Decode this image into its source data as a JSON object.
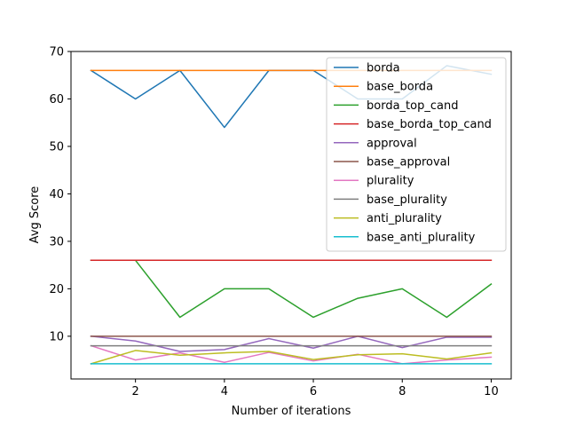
{
  "chart_data": {
    "type": "line",
    "title": "",
    "xlabel": "Number of iterations",
    "ylabel": "Avg Score",
    "xlim": [
      0.55,
      10.45
    ],
    "ylim": [
      1,
      70
    ],
    "xticks": [
      2,
      4,
      6,
      8,
      10
    ],
    "yticks": [
      10,
      20,
      30,
      40,
      50,
      60,
      70
    ],
    "grid": false,
    "legend_position": "upper-right",
    "x": [
      1,
      2,
      3,
      4,
      5,
      6,
      7,
      8,
      9,
      10
    ],
    "series": [
      {
        "name": "borda",
        "color": "#1f77b4",
        "values": [
          66,
          60,
          66,
          54,
          66,
          66,
          60,
          60,
          67,
          65.2
        ]
      },
      {
        "name": "base_borda",
        "color": "#ff7f0e",
        "values": [
          66,
          66,
          66,
          66,
          66,
          66,
          66,
          66,
          66,
          66
        ]
      },
      {
        "name": "borda_top_cand",
        "color": "#2ca02c",
        "values": [
          26,
          26,
          14,
          20,
          20,
          14,
          18,
          20,
          14,
          21
        ]
      },
      {
        "name": "base_borda_top_cand",
        "color": "#d62728",
        "values": [
          26,
          26,
          26,
          26,
          26,
          26,
          26,
          26,
          26,
          26
        ]
      },
      {
        "name": "approval",
        "color": "#9467bd",
        "values": [
          10,
          9,
          6.8,
          7.2,
          9.5,
          7.5,
          10,
          7.6,
          9.8,
          9.8
        ]
      },
      {
        "name": "base_approval",
        "color": "#8c564b",
        "values": [
          10,
          10,
          10,
          10,
          10,
          10,
          10,
          10,
          10,
          10
        ]
      },
      {
        "name": "plurality",
        "color": "#e377c2",
        "values": [
          8,
          5,
          6.5,
          4.5,
          6.6,
          4.8,
          6.2,
          4.2,
          5,
          5.6
        ]
      },
      {
        "name": "base_plurality",
        "color": "#7f7f7f",
        "values": [
          8,
          8,
          8,
          8,
          8,
          8,
          8,
          8,
          8,
          8
        ]
      },
      {
        "name": "anti_plurality",
        "color": "#bcbd22",
        "values": [
          4.2,
          7,
          6,
          6.5,
          6.8,
          5.1,
          6.1,
          6.3,
          5.2,
          6.5
        ]
      },
      {
        "name": "base_anti_plurality",
        "color": "#17becf",
        "values": [
          4.2,
          4.2,
          4.2,
          4.2,
          4.2,
          4.2,
          4.2,
          4.2,
          4.2,
          4.2
        ]
      }
    ]
  }
}
